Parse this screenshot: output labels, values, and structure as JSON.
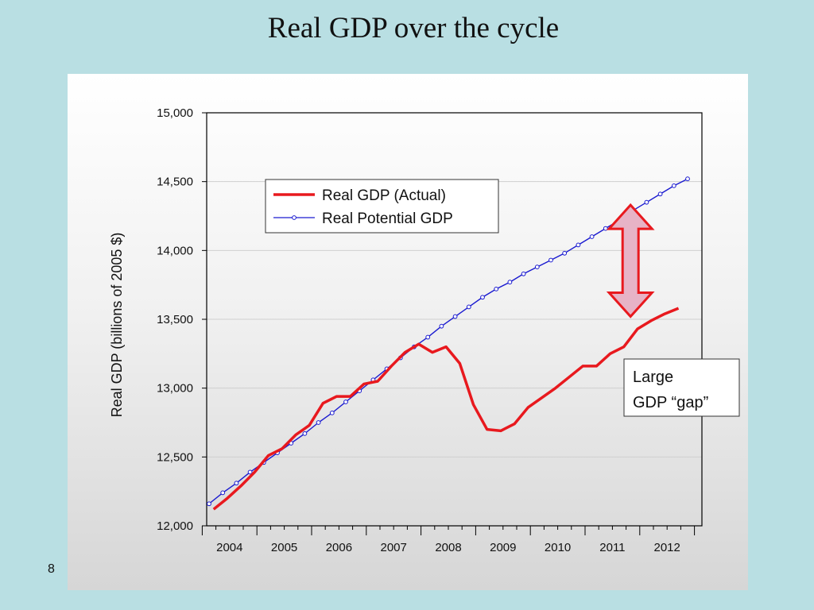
{
  "slide": {
    "title": "Real GDP over the cycle",
    "page_number": "8"
  },
  "colors": {
    "actual": "#e8191e",
    "potential": "#1a1ad0",
    "arrow_fill": "#e7b3c6",
    "arrow_stroke": "#e8191e",
    "background": "#b9dfe3"
  },
  "chart_data": {
    "type": "line",
    "title": "",
    "xlabel": "",
    "ylabel": "Real GDP (billions of 2005 $)",
    "ylim": [
      12000,
      15000
    ],
    "yticks": [
      12000,
      12500,
      13000,
      13500,
      14000,
      14500,
      15000
    ],
    "ytick_labels": [
      "12,000",
      "12,500",
      "13,000",
      "13,500",
      "14,000",
      "14,500",
      "15,000"
    ],
    "xticks": [
      "2004",
      "2005",
      "2006",
      "2007",
      "2008",
      "2009",
      "2010",
      "2011",
      "2012"
    ],
    "xlim": [
      "2004Q1",
      "2012Q4"
    ],
    "grid": true,
    "legend_position": "top-left",
    "series": [
      {
        "name": "Real GDP (Actual)",
        "color": "#e8191e",
        "style": "thick-line",
        "x": [
          "2004Q1",
          "2004Q2",
          "2004Q3",
          "2004Q4",
          "2005Q1",
          "2005Q2",
          "2005Q3",
          "2005Q4",
          "2006Q1",
          "2006Q2",
          "2006Q3",
          "2006Q4",
          "2007Q1",
          "2007Q2",
          "2007Q3",
          "2007Q4",
          "2008Q1",
          "2008Q2",
          "2008Q3",
          "2008Q4",
          "2009Q1",
          "2009Q2",
          "2009Q3",
          "2009Q4",
          "2010Q1",
          "2010Q2",
          "2010Q3",
          "2010Q4",
          "2011Q1",
          "2011Q2",
          "2011Q3",
          "2011Q4",
          "2012Q1",
          "2012Q2",
          "2012Q3"
        ],
        "values": [
          12120,
          12200,
          12290,
          12390,
          12510,
          12560,
          12660,
          12730,
          12890,
          12940,
          12940,
          13030,
          13050,
          13160,
          13260,
          13320,
          13260,
          13300,
          13180,
          12880,
          12700,
          12690,
          12740,
          12860,
          12930,
          13000,
          13080,
          13160,
          13160,
          13250,
          13300,
          13430,
          13490,
          13540,
          13580
        ]
      },
      {
        "name": "Real Potential GDP",
        "color": "#1a1ad0",
        "style": "thin-line-with-circle-markers",
        "x": [
          "2004Q1",
          "2004Q2",
          "2004Q3",
          "2004Q4",
          "2005Q1",
          "2005Q2",
          "2005Q3",
          "2005Q4",
          "2006Q1",
          "2006Q2",
          "2006Q3",
          "2006Q4",
          "2007Q1",
          "2007Q2",
          "2007Q3",
          "2007Q4",
          "2008Q1",
          "2008Q2",
          "2008Q3",
          "2008Q4",
          "2009Q1",
          "2009Q2",
          "2009Q3",
          "2009Q4",
          "2010Q1",
          "2010Q2",
          "2010Q3",
          "2010Q4",
          "2011Q1",
          "2011Q2",
          "2011Q3",
          "2011Q4",
          "2012Q1",
          "2012Q2",
          "2012Q3",
          "2012Q4"
        ],
        "values": [
          12160,
          12240,
          12310,
          12390,
          12460,
          12530,
          12600,
          12670,
          12750,
          12820,
          12900,
          12980,
          13060,
          13140,
          13220,
          13300,
          13370,
          13450,
          13520,
          13590,
          13660,
          13720,
          13770,
          13830,
          13880,
          13930,
          13980,
          14040,
          14100,
          14160,
          14220,
          14290,
          14350,
          14410,
          14470,
          14520
        ]
      }
    ],
    "annotations": [
      {
        "type": "double-arrow",
        "from_value": 13520,
        "to_value": 14330,
        "at_x": "2011Q4"
      },
      {
        "type": "text-box",
        "lines": [
          "Large",
          "GDP “gap”"
        ]
      }
    ]
  }
}
